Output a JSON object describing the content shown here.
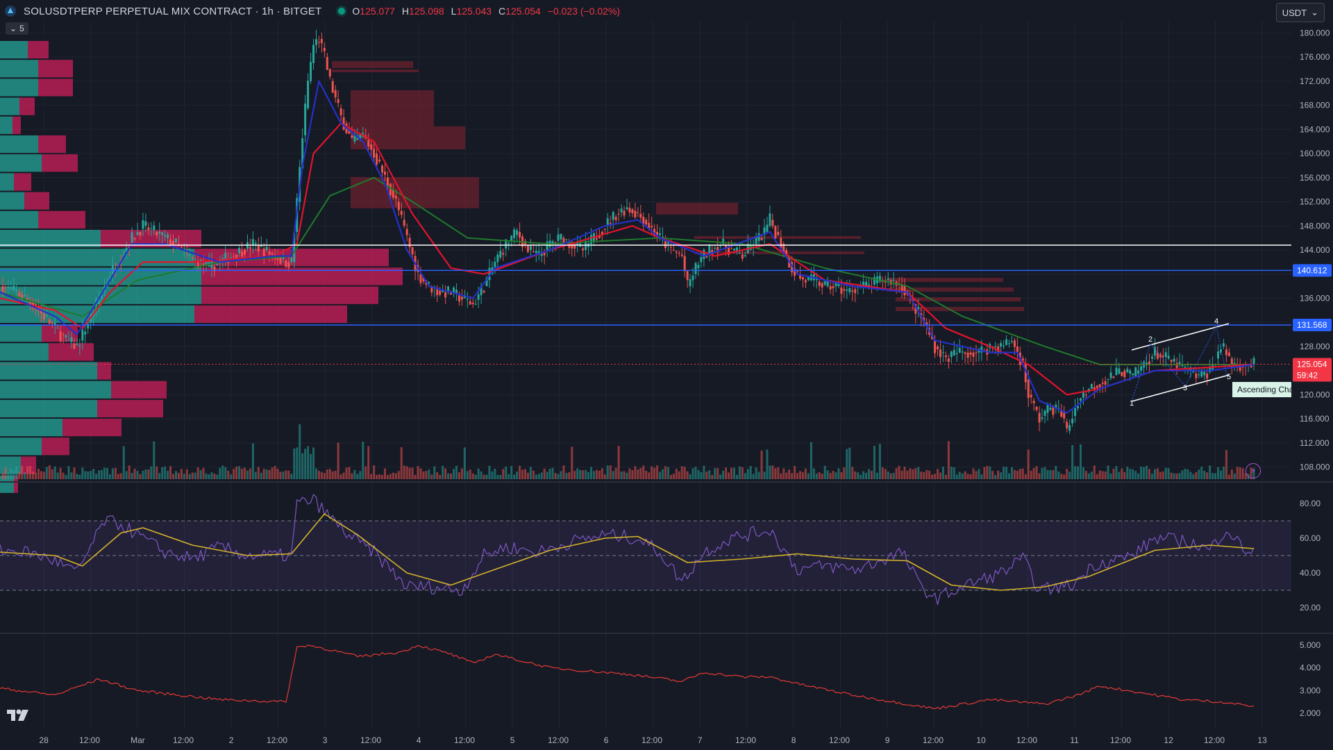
{
  "header": {
    "symbol": "SOLUSDTPERP PERPETUAL MIX CONTRACT · 1h · BITGET",
    "ohlc": [
      {
        "k": "O",
        "v": "125.077"
      },
      {
        "k": "H",
        "v": "125.098"
      },
      {
        "k": "L",
        "v": "125.043"
      },
      {
        "k": "C",
        "v": "125.054"
      },
      {
        "k": "",
        "v": "−0.023 (−0.02%)"
      }
    ],
    "indicator_toggle_label": "5",
    "currency": "USDT"
  },
  "colors": {
    "background": "#161a25",
    "up": "#26a69a",
    "down": "#ef5350",
    "ema_fast": "#2431c9",
    "ema_mid": "#e3132d",
    "ema_slow": "#1f7a2c",
    "rsi": "#7e57c2",
    "rsi_ma": "#d4b32a",
    "hline_white": "#ffffff",
    "hline_blue": "#2962ff"
  },
  "price_axis": {
    "ticks": [
      "180.000",
      "176.000",
      "172.000",
      "168.000",
      "164.000",
      "160.000",
      "156.000",
      "152.000",
      "148.000",
      "144.000",
      "140.000",
      "136.000",
      "132.000",
      "128.000",
      "124.000",
      "120.000",
      "116.000",
      "112.000",
      "108.000"
    ],
    "labels": [
      {
        "text": "140.612",
        "color": "#2962ff"
      },
      {
        "text": "131.568",
        "color": "#2962ff"
      },
      {
        "text": "125.054",
        "color": "#f23645"
      },
      {
        "text": "59:42",
        "color": "#f23645"
      }
    ]
  },
  "rsi_axis": {
    "ticks": [
      "80.00",
      "60.00",
      "40.00",
      "20.00"
    ]
  },
  "atr_axis": {
    "ticks": [
      "5.000",
      "4.000",
      "3.000",
      "2.000"
    ]
  },
  "time_axis": {
    "labels": [
      "28",
      "12:00",
      "Mar",
      "12:00",
      "2",
      "12:00",
      "3",
      "12:00",
      "4",
      "12:00",
      "5",
      "12:00",
      "6",
      "12:00",
      "7",
      "12:00",
      "8",
      "12:00",
      "9",
      "12:00",
      "10",
      "12:00",
      "11",
      "12:00",
      "12",
      "12:00",
      "13"
    ]
  },
  "pattern": {
    "label": "Ascending Cha",
    "points": [
      "1",
      "2",
      "3",
      "4",
      "5"
    ]
  },
  "chart_data": {
    "type": "candlestick",
    "title": "SOLUSDTPERP PERPETUAL MIX CONTRACT · 1h · BITGET",
    "ylim": [
      106,
      182
    ],
    "x_labels": [
      "28",
      "12:00",
      "Mar",
      "12:00",
      "2",
      "12:00",
      "3",
      "12:00",
      "4",
      "12:00",
      "5",
      "12:00",
      "6",
      "12:00",
      "7",
      "12:00",
      "8",
      "12:00",
      "9",
      "12:00",
      "10",
      "12:00",
      "11",
      "12:00",
      "12",
      "12:00",
      "13"
    ],
    "price_path": [
      [
        0,
        138
      ],
      [
        6,
        137
      ],
      [
        12,
        135
      ],
      [
        18,
        132
      ],
      [
        24,
        129
      ],
      [
        28,
        128
      ],
      [
        32,
        132
      ],
      [
        36,
        136
      ],
      [
        40,
        140
      ],
      [
        44,
        143
      ],
      [
        48,
        146
      ],
      [
        52,
        148
      ],
      [
        56,
        147
      ],
      [
        60,
        146
      ],
      [
        64,
        145
      ],
      [
        68,
        143
      ],
      [
        72,
        142
      ],
      [
        76,
        141
      ],
      [
        80,
        142
      ],
      [
        84,
        143
      ],
      [
        88,
        144
      ],
      [
        92,
        145
      ],
      [
        96,
        144
      ],
      [
        100,
        143
      ],
      [
        104,
        142
      ],
      [
        106,
        142
      ],
      [
        108,
        152
      ],
      [
        110,
        163
      ],
      [
        112,
        172
      ],
      [
        114,
        178
      ],
      [
        116,
        179
      ],
      [
        118,
        176
      ],
      [
        120,
        172
      ],
      [
        124,
        166
      ],
      [
        128,
        162
      ],
      [
        132,
        163
      ],
      [
        136,
        160
      ],
      [
        140,
        156
      ],
      [
        144,
        152
      ],
      [
        148,
        146
      ],
      [
        152,
        140
      ],
      [
        156,
        138
      ],
      [
        160,
        137
      ],
      [
        164,
        137
      ],
      [
        168,
        136
      ],
      [
        172,
        135
      ],
      [
        176,
        138
      ],
      [
        180,
        142
      ],
      [
        184,
        145
      ],
      [
        188,
        147
      ],
      [
        192,
        144
      ],
      [
        196,
        143
      ],
      [
        200,
        145
      ],
      [
        204,
        146
      ],
      [
        208,
        145
      ],
      [
        212,
        144
      ],
      [
        216,
        146
      ],
      [
        220,
        148
      ],
      [
        224,
        150
      ],
      [
        228,
        151
      ],
      [
        232,
        150
      ],
      [
        236,
        148
      ],
      [
        240,
        146
      ],
      [
        244,
        144
      ],
      [
        248,
        143
      ],
      [
        250,
        138
      ],
      [
        254,
        142
      ],
      [
        258,
        144
      ],
      [
        262,
        145
      ],
      [
        266,
        144
      ],
      [
        270,
        143
      ],
      [
        274,
        145
      ],
      [
        278,
        147
      ],
      [
        280,
        149
      ],
      [
        284,
        145
      ],
      [
        288,
        141
      ],
      [
        292,
        139
      ],
      [
        296,
        139
      ],
      [
        300,
        138
      ],
      [
        304,
        138
      ],
      [
        308,
        137
      ],
      [
        312,
        138
      ],
      [
        316,
        138
      ],
      [
        320,
        139
      ],
      [
        324,
        139
      ],
      [
        328,
        138
      ],
      [
        332,
        135
      ],
      [
        336,
        132
      ],
      [
        340,
        128
      ],
      [
        344,
        126
      ],
      [
        348,
        127
      ],
      [
        352,
        127
      ],
      [
        356,
        127
      ],
      [
        360,
        128
      ],
      [
        364,
        128
      ],
      [
        368,
        129
      ],
      [
        372,
        125
      ],
      [
        374,
        120
      ],
      [
        378,
        116
      ],
      [
        382,
        118
      ],
      [
        386,
        117
      ],
      [
        388,
        114
      ],
      [
        392,
        119
      ],
      [
        396,
        121
      ],
      [
        400,
        122
      ],
      [
        404,
        123
      ],
      [
        408,
        124
      ],
      [
        412,
        123
      ],
      [
        416,
        125
      ],
      [
        420,
        127
      ],
      [
        424,
        126
      ],
      [
        428,
        125
      ],
      [
        432,
        124
      ],
      [
        436,
        123
      ],
      [
        440,
        124
      ],
      [
        444,
        128
      ],
      [
        446,
        127
      ],
      [
        448,
        125
      ],
      [
        452,
        125
      ],
      [
        456,
        125
      ]
    ],
    "ema_fast_path": [
      [
        0,
        137
      ],
      [
        20,
        133
      ],
      [
        28,
        130
      ],
      [
        36,
        136
      ],
      [
        48,
        145
      ],
      [
        60,
        145
      ],
      [
        80,
        142
      ],
      [
        100,
        143
      ],
      [
        106,
        143
      ],
      [
        110,
        158
      ],
      [
        116,
        172
      ],
      [
        124,
        165
      ],
      [
        132,
        162
      ],
      [
        140,
        155
      ],
      [
        148,
        144
      ],
      [
        156,
        138
      ],
      [
        172,
        136
      ],
      [
        180,
        141
      ],
      [
        200,
        144
      ],
      [
        220,
        148
      ],
      [
        232,
        149
      ],
      [
        240,
        146
      ],
      [
        256,
        143
      ],
      [
        280,
        147
      ],
      [
        290,
        140
      ],
      [
        310,
        138
      ],
      [
        330,
        137
      ],
      [
        340,
        129
      ],
      [
        360,
        127
      ],
      [
        370,
        127
      ],
      [
        378,
        119
      ],
      [
        388,
        117
      ],
      [
        400,
        121
      ],
      [
        420,
        124
      ],
      [
        440,
        124
      ],
      [
        456,
        125
      ]
    ],
    "ema_mid_path": [
      [
        0,
        136
      ],
      [
        20,
        134
      ],
      [
        30,
        131
      ],
      [
        40,
        137
      ],
      [
        52,
        142
      ],
      [
        70,
        142
      ],
      [
        100,
        143
      ],
      [
        108,
        145
      ],
      [
        114,
        160
      ],
      [
        124,
        165
      ],
      [
        136,
        162
      ],
      [
        150,
        150
      ],
      [
        164,
        141
      ],
      [
        176,
        140
      ],
      [
        200,
        144
      ],
      [
        230,
        148
      ],
      [
        240,
        146
      ],
      [
        260,
        143
      ],
      [
        280,
        145
      ],
      [
        300,
        139
      ],
      [
        330,
        137
      ],
      [
        344,
        131
      ],
      [
        360,
        128
      ],
      [
        374,
        125
      ],
      [
        388,
        120
      ],
      [
        400,
        121
      ],
      [
        420,
        124
      ],
      [
        456,
        125
      ]
    ],
    "ema_slow_path": [
      [
        0,
        137
      ],
      [
        30,
        133
      ],
      [
        50,
        139
      ],
      [
        80,
        142
      ],
      [
        106,
        143
      ],
      [
        120,
        153
      ],
      [
        136,
        156
      ],
      [
        150,
        152
      ],
      [
        170,
        146
      ],
      [
        200,
        145
      ],
      [
        240,
        146
      ],
      [
        270,
        145
      ],
      [
        300,
        141
      ],
      [
        330,
        138
      ],
      [
        350,
        133
      ],
      [
        380,
        128
      ],
      [
        400,
        125
      ],
      [
        430,
        125
      ],
      [
        456,
        125
      ]
    ],
    "rsi_path": [
      [
        0,
        53
      ],
      [
        10,
        52
      ],
      [
        20,
        47
      ],
      [
        28,
        40
      ],
      [
        34,
        58
      ],
      [
        38,
        70
      ],
      [
        44,
        68
      ],
      [
        52,
        60
      ],
      [
        60,
        52
      ],
      [
        70,
        48
      ],
      [
        80,
        55
      ],
      [
        90,
        50
      ],
      [
        100,
        50
      ],
      [
        106,
        50
      ],
      [
        108,
        80
      ],
      [
        114,
        82
      ],
      [
        120,
        72
      ],
      [
        128,
        60
      ],
      [
        136,
        52
      ],
      [
        148,
        32
      ],
      [
        156,
        32
      ],
      [
        168,
        30
      ],
      [
        176,
        50
      ],
      [
        184,
        55
      ],
      [
        196,
        52
      ],
      [
        208,
        58
      ],
      [
        220,
        62
      ],
      [
        232,
        60
      ],
      [
        240,
        52
      ],
      [
        248,
        35
      ],
      [
        256,
        52
      ],
      [
        266,
        60
      ],
      [
        280,
        65
      ],
      [
        290,
        42
      ],
      [
        300,
        44
      ],
      [
        312,
        42
      ],
      [
        328,
        52
      ],
      [
        334,
        34
      ],
      [
        340,
        25
      ],
      [
        350,
        32
      ],
      [
        364,
        40
      ],
      [
        372,
        48
      ],
      [
        378,
        30
      ],
      [
        390,
        33
      ],
      [
        398,
        45
      ],
      [
        412,
        50
      ],
      [
        420,
        60
      ],
      [
        432,
        58
      ],
      [
        440,
        53
      ],
      [
        446,
        66
      ],
      [
        452,
        54
      ],
      [
        456,
        52
      ]
    ],
    "rsi_ma_path": [
      [
        0,
        52
      ],
      [
        20,
        50
      ],
      [
        30,
        44
      ],
      [
        44,
        63
      ],
      [
        52,
        66
      ],
      [
        70,
        56
      ],
      [
        90,
        50
      ],
      [
        106,
        51
      ],
      [
        118,
        74
      ],
      [
        130,
        62
      ],
      [
        148,
        40
      ],
      [
        164,
        33
      ],
      [
        180,
        42
      ],
      [
        200,
        53
      ],
      [
        220,
        60
      ],
      [
        232,
        61
      ],
      [
        250,
        46
      ],
      [
        270,
        48
      ],
      [
        290,
        51
      ],
      [
        310,
        48
      ],
      [
        330,
        47
      ],
      [
        346,
        33
      ],
      [
        364,
        30
      ],
      [
        380,
        32
      ],
      [
        396,
        38
      ],
      [
        420,
        53
      ],
      [
        440,
        56
      ],
      [
        456,
        54
      ]
    ],
    "atr_path": [
      [
        0,
        3.1
      ],
      [
        20,
        2.8
      ],
      [
        36,
        3.5
      ],
      [
        50,
        3.0
      ],
      [
        80,
        2.6
      ],
      [
        104,
        2.5
      ],
      [
        108,
        4.9
      ],
      [
        112,
        5.0
      ],
      [
        120,
        4.8
      ],
      [
        130,
        4.5
      ],
      [
        146,
        4.7
      ],
      [
        152,
        5.0
      ],
      [
        164,
        4.6
      ],
      [
        172,
        4.2
      ],
      [
        180,
        4.6
      ],
      [
        200,
        4.0
      ],
      [
        230,
        3.7
      ],
      [
        248,
        3.4
      ],
      [
        256,
        3.8
      ],
      [
        270,
        3.6
      ],
      [
        280,
        3.6
      ],
      [
        290,
        3.3
      ],
      [
        310,
        2.8
      ],
      [
        330,
        2.4
      ],
      [
        340,
        2.2
      ],
      [
        360,
        2.6
      ],
      [
        380,
        2.4
      ],
      [
        392,
        2.8
      ],
      [
        400,
        3.2
      ],
      [
        410,
        3.0
      ],
      [
        430,
        2.6
      ],
      [
        444,
        2.5
      ],
      [
        456,
        2.3
      ]
    ],
    "hlines": [
      {
        "price": 144.8,
        "color": "#ffffff"
      },
      {
        "price": 140.612,
        "color": "#2962ff"
      },
      {
        "price": 131.568,
        "color": "#2962ff"
      },
      {
        "price": 125.054,
        "color": "#f23645"
      }
    ]
  }
}
